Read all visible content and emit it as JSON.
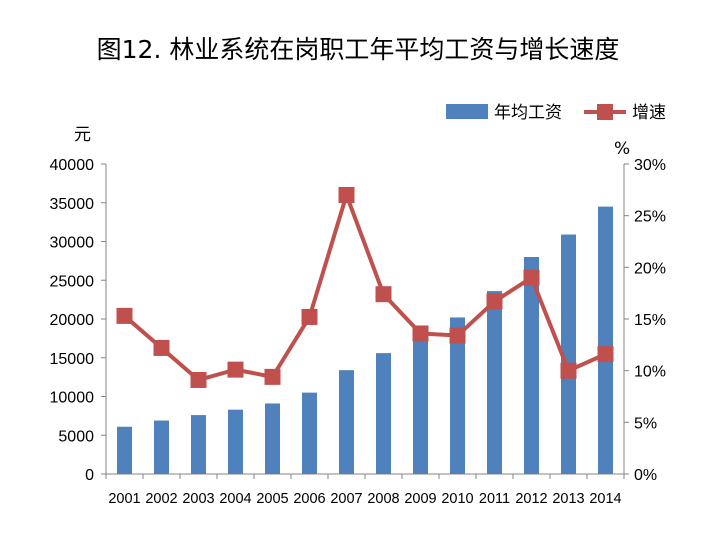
{
  "chart_data": {
    "type": "bar+line",
    "title": "图12. 林业系统在岗职工年平均工资与增长速度",
    "categories": [
      "2001",
      "2002",
      "2003",
      "2004",
      "2005",
      "2006",
      "2007",
      "2008",
      "2009",
      "2010",
      "2011",
      "2012",
      "2013",
      "2014"
    ],
    "series": [
      {
        "name": "年均工资",
        "type": "bar",
        "axis": "left",
        "color": "#4F81BD",
        "values": [
          6100,
          6900,
          7600,
          8300,
          9100,
          10500,
          13400,
          15600,
          17800,
          20200,
          23600,
          28000,
          30900,
          34500
        ]
      },
      {
        "name": "增速",
        "type": "line",
        "axis": "right",
        "color": "#C0504D",
        "values": [
          15.3,
          12.2,
          9.1,
          10.1,
          9.4,
          15.2,
          27.0,
          17.4,
          13.6,
          13.4,
          16.7,
          19.0,
          10.0,
          11.6
        ]
      }
    ],
    "left_axis": {
      "unit_label": "元",
      "ylim": [
        0,
        40000
      ],
      "ticks": [
        "0",
        "5000",
        "10000",
        "15000",
        "20000",
        "25000",
        "30000",
        "35000",
        "40000"
      ]
    },
    "right_axis": {
      "unit_label": "%",
      "ylim": [
        0,
        30
      ],
      "ticks": [
        "0%",
        "5%",
        "10%",
        "15%",
        "20%",
        "25%",
        "30%"
      ]
    },
    "legend_position": "top-right",
    "grid": false
  }
}
